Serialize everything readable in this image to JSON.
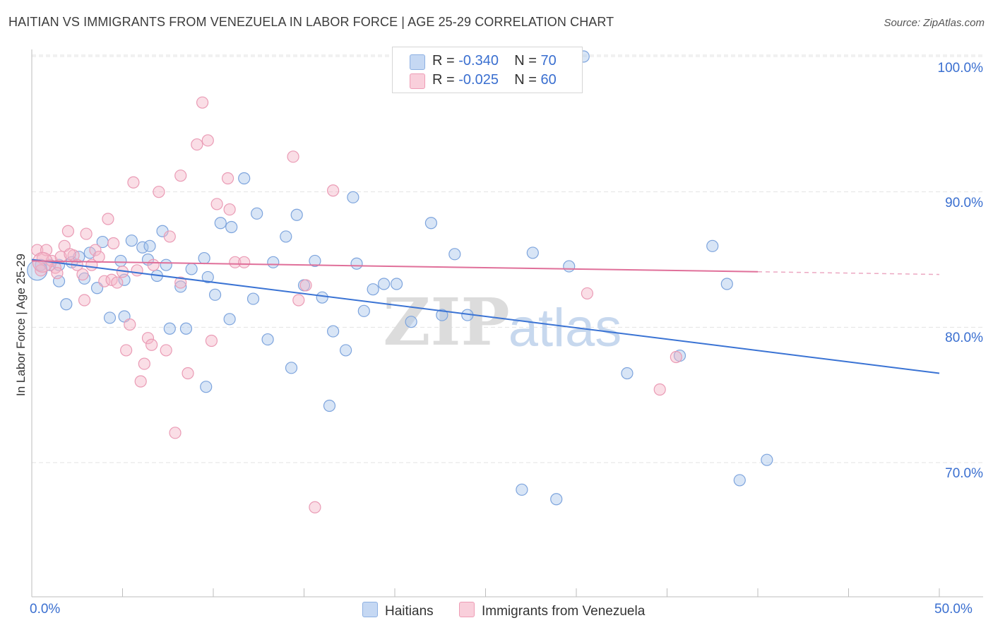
{
  "title": "HAITIAN VS IMMIGRANTS FROM VENEZUELA IN LABOR FORCE | AGE 25-29 CORRELATION CHART",
  "source": "Source: ZipAtlas.com",
  "watermark": {
    "zip": "ZIP",
    "atlas": "atlas"
  },
  "legend": {
    "rows": [
      {
        "r_label": "R = ",
        "r_value": "-0.340",
        "n_label": "N = ",
        "n_value": "70",
        "color": "#a9c5ec"
      },
      {
        "r_label": "R = ",
        "r_value": "-0.025",
        "n_label": "N = ",
        "n_value": "60",
        "color": "#f4b6c8"
      }
    ]
  },
  "bottom_legend": [
    "Haitians",
    "Immigrants from Venezuela"
  ],
  "chart_data": {
    "type": "scatter",
    "title": "HAITIAN VS IMMIGRANTS FROM VENEZUELA IN LABOR FORCE | AGE 25-29 CORRELATION CHART",
    "xlabel": "",
    "ylabel": "In Labor Force | Age 25-29",
    "xlim": [
      0,
      50
    ],
    "ylim": [
      60.5,
      101.5
    ],
    "x_tick_labels": [
      "0.0%",
      "50.0%"
    ],
    "y_ticks": [
      {
        "value": 70,
        "label": "70.0%"
      },
      {
        "value": 80,
        "label": "80.0%"
      },
      {
        "value": 90,
        "label": "90.0%"
      },
      {
        "value": 100,
        "label": "100.0%"
      }
    ],
    "grid": true,
    "series": [
      {
        "name": "Haitians",
        "color": "#3a73d4",
        "fill": "#a9c5ec",
        "trend": {
          "x0": 0,
          "y0": 85.0,
          "x1": 50,
          "y1": 76.6,
          "dashed_from": null
        },
        "points": [
          [
            0.5,
            84.6
          ],
          [
            1.0,
            84.6
          ],
          [
            1.5,
            84.6
          ],
          [
            1.5,
            83.4
          ],
          [
            1.9,
            81.7
          ],
          [
            2.2,
            84.8
          ],
          [
            2.6,
            85.2
          ],
          [
            2.9,
            83.6
          ],
          [
            3.2,
            85.5
          ],
          [
            3.6,
            82.9
          ],
          [
            3.9,
            86.3
          ],
          [
            4.3,
            80.7
          ],
          [
            4.9,
            84.9
          ],
          [
            5.1,
            80.8
          ],
          [
            5.1,
            83.5
          ],
          [
            5.5,
            86.4
          ],
          [
            6.1,
            85.9
          ],
          [
            6.4,
            85.0
          ],
          [
            6.5,
            86.0
          ],
          [
            6.9,
            83.8
          ],
          [
            7.2,
            87.1
          ],
          [
            7.4,
            84.6
          ],
          [
            7.6,
            79.9
          ],
          [
            8.2,
            83.0
          ],
          [
            8.5,
            79.9
          ],
          [
            8.8,
            84.3
          ],
          [
            9.5,
            85.1
          ],
          [
            9.6,
            75.6
          ],
          [
            9.7,
            83.7
          ],
          [
            10.1,
            82.4
          ],
          [
            10.4,
            87.7
          ],
          [
            10.9,
            80.6
          ],
          [
            11.0,
            87.4
          ],
          [
            11.7,
            91.0
          ],
          [
            12.2,
            82.1
          ],
          [
            12.4,
            88.4
          ],
          [
            13.0,
            79.1
          ],
          [
            13.3,
            84.8
          ],
          [
            14.0,
            86.7
          ],
          [
            14.3,
            77.0
          ],
          [
            14.6,
            88.3
          ],
          [
            15.0,
            83.1
          ],
          [
            15.6,
            84.9
          ],
          [
            16.0,
            82.2
          ],
          [
            16.4,
            74.2
          ],
          [
            16.6,
            79.7
          ],
          [
            17.3,
            78.3
          ],
          [
            17.7,
            89.6
          ],
          [
            17.9,
            84.7
          ],
          [
            18.3,
            81.2
          ],
          [
            18.8,
            82.8
          ],
          [
            19.4,
            83.2
          ],
          [
            20.1,
            83.2
          ],
          [
            20.9,
            80.4
          ],
          [
            22.0,
            87.7
          ],
          [
            22.6,
            80.9
          ],
          [
            23.3,
            85.4
          ],
          [
            24.0,
            80.9
          ],
          [
            27.0,
            68.0
          ],
          [
            27.6,
            85.5
          ],
          [
            28.9,
            67.3
          ],
          [
            29.6,
            84.5
          ],
          [
            30.4,
            100.0
          ],
          [
            32.8,
            76.6
          ],
          [
            35.7,
            77.9
          ],
          [
            37.5,
            86.0
          ],
          [
            38.3,
            83.2
          ],
          [
            39.0,
            68.7
          ],
          [
            40.5,
            70.2
          ],
          [
            0.3,
            84.2
          ]
        ]
      },
      {
        "name": "Immigrants from Venezuela",
        "color": "#e0709a",
        "fill": "#f4b6c8",
        "trend": {
          "x0": 0,
          "y0": 84.9,
          "x1": 40.0,
          "y1": 84.1,
          "dashed_to": 50,
          "dashed_y": 83.9
        },
        "points": [
          [
            0.3,
            85.7
          ],
          [
            0.5,
            84.2
          ],
          [
            0.6,
            85.1
          ],
          [
            1.1,
            84.9
          ],
          [
            1.3,
            84.4
          ],
          [
            1.6,
            85.2
          ],
          [
            1.8,
            86.0
          ],
          [
            2.0,
            87.1
          ],
          [
            2.3,
            85.3
          ],
          [
            2.5,
            84.6
          ],
          [
            2.8,
            83.9
          ],
          [
            2.9,
            82.0
          ],
          [
            3.0,
            86.9
          ],
          [
            3.3,
            84.6
          ],
          [
            3.5,
            85.7
          ],
          [
            3.7,
            85.2
          ],
          [
            4.0,
            83.4
          ],
          [
            4.2,
            88.0
          ],
          [
            4.4,
            83.5
          ],
          [
            4.5,
            86.2
          ],
          [
            4.7,
            83.3
          ],
          [
            5.0,
            84.1
          ],
          [
            5.2,
            78.3
          ],
          [
            5.4,
            80.2
          ],
          [
            5.6,
            90.7
          ],
          [
            5.8,
            84.2
          ],
          [
            6.0,
            76.0
          ],
          [
            6.2,
            77.3
          ],
          [
            6.4,
            79.2
          ],
          [
            6.7,
            84.6
          ],
          [
            6.6,
            78.7
          ],
          [
            7.0,
            90.0
          ],
          [
            7.4,
            78.3
          ],
          [
            7.6,
            86.7
          ],
          [
            7.9,
            72.2
          ],
          [
            8.2,
            91.2
          ],
          [
            8.2,
            83.3
          ],
          [
            8.6,
            76.6
          ],
          [
            9.1,
            93.5
          ],
          [
            9.4,
            96.6
          ],
          [
            9.7,
            93.8
          ],
          [
            9.9,
            79.0
          ],
          [
            10.2,
            89.1
          ],
          [
            10.8,
            91.0
          ],
          [
            10.9,
            88.7
          ],
          [
            11.2,
            84.8
          ],
          [
            11.7,
            84.8
          ],
          [
            14.4,
            92.6
          ],
          [
            14.7,
            82.0
          ],
          [
            15.1,
            83.1
          ],
          [
            15.6,
            66.7
          ],
          [
            16.6,
            90.1
          ],
          [
            21.6,
            100.0
          ],
          [
            30.6,
            82.5
          ],
          [
            34.6,
            75.4
          ],
          [
            35.5,
            77.8
          ],
          [
            0.8,
            85.7
          ],
          [
            1.4,
            84.0
          ],
          [
            2.1,
            85.4
          ],
          [
            0.6,
            84.8
          ]
        ]
      }
    ]
  }
}
